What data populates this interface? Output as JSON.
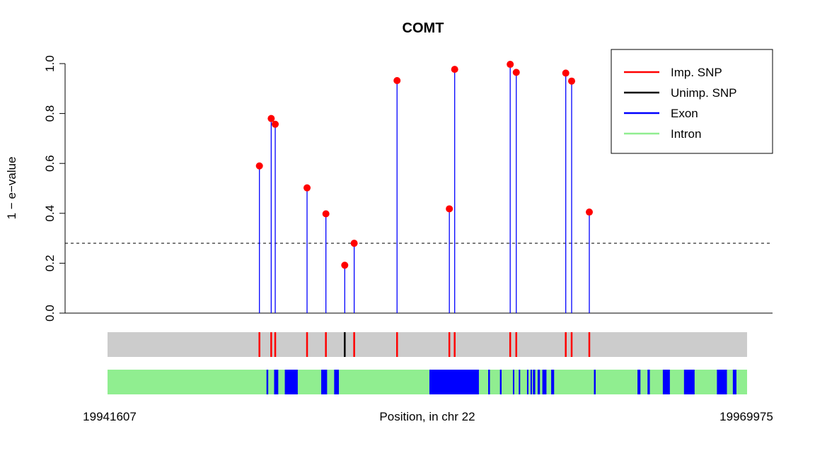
{
  "chart_data": {
    "type": "scatter",
    "title": "COMT",
    "ylabel": "1 − e−value",
    "xlabel": "Position, in chr 22",
    "x_range": [
      19941607,
      19969975
    ],
    "x_start_label": "19941607",
    "x_end_label": "19969975",
    "ylim": [
      0,
      1
    ],
    "y_ticks": [
      "0.0",
      "0.2",
      "0.4",
      "0.6",
      "0.8",
      "1.0"
    ],
    "threshold": 0.28,
    "legend": {
      "placement": "top-right",
      "entries": [
        {
          "label": "Imp. SNP",
          "color": "#ff0000"
        },
        {
          "label": "Unimp. SNP",
          "color": "#000000"
        },
        {
          "label": "Exon",
          "color": "#0000ff"
        },
        {
          "label": "Intron",
          "color": "#90ee90"
        }
      ]
    },
    "colors": {
      "stem": "#0000ff",
      "point": "#ff0000",
      "snp_track": "#cccccc",
      "intron": "#90ee90",
      "exon": "#0000ff"
    },
    "points": [
      {
        "x": 19948344,
        "y": 0.59,
        "imputed": true
      },
      {
        "x": 19948867,
        "y": 0.78,
        "imputed": true
      },
      {
        "x": 19949045,
        "y": 0.757,
        "imputed": true
      },
      {
        "x": 19950457,
        "y": 0.502,
        "imputed": true
      },
      {
        "x": 19951293,
        "y": 0.398,
        "imputed": true
      },
      {
        "x": 19952129,
        "y": 0.192,
        "imputed": false
      },
      {
        "x": 19952547,
        "y": 0.28,
        "imputed": true
      },
      {
        "x": 19954449,
        "y": 0.932,
        "imputed": true
      },
      {
        "x": 19956769,
        "y": 0.418,
        "imputed": true
      },
      {
        "x": 19957005,
        "y": 0.977,
        "imputed": true
      },
      {
        "x": 19959468,
        "y": 0.997,
        "imputed": true
      },
      {
        "x": 19959737,
        "y": 0.965,
        "imputed": true
      },
      {
        "x": 19961932,
        "y": 0.962,
        "imputed": true
      },
      {
        "x": 19962193,
        "y": 0.93,
        "imputed": true
      },
      {
        "x": 19962977,
        "y": 0.405,
        "imputed": true
      }
    ],
    "exons": [
      [
        19948657,
        19948735
      ],
      [
        19948996,
        19949180
      ],
      [
        19949470,
        19950045
      ],
      [
        19951085,
        19951346
      ],
      [
        19951659,
        19951869
      ],
      [
        19955884,
        19958079
      ],
      [
        19958491,
        19958569
      ],
      [
        19959012,
        19959086
      ],
      [
        19959587,
        19959639
      ],
      [
        19959848,
        19959899
      ],
      [
        19960213,
        19960265
      ],
      [
        19960370,
        19960422
      ],
      [
        19960475,
        19960578
      ],
      [
        19960684,
        19960788
      ],
      [
        19960893,
        19961076
      ],
      [
        19961285,
        19961416
      ],
      [
        19963182,
        19963260
      ],
      [
        19965113,
        19965244
      ],
      [
        19965558,
        19965662
      ],
      [
        19966237,
        19966550
      ],
      [
        19967177,
        19967647
      ],
      [
        19968637,
        19969081
      ],
      [
        19969343,
        19969503
      ]
    ]
  }
}
